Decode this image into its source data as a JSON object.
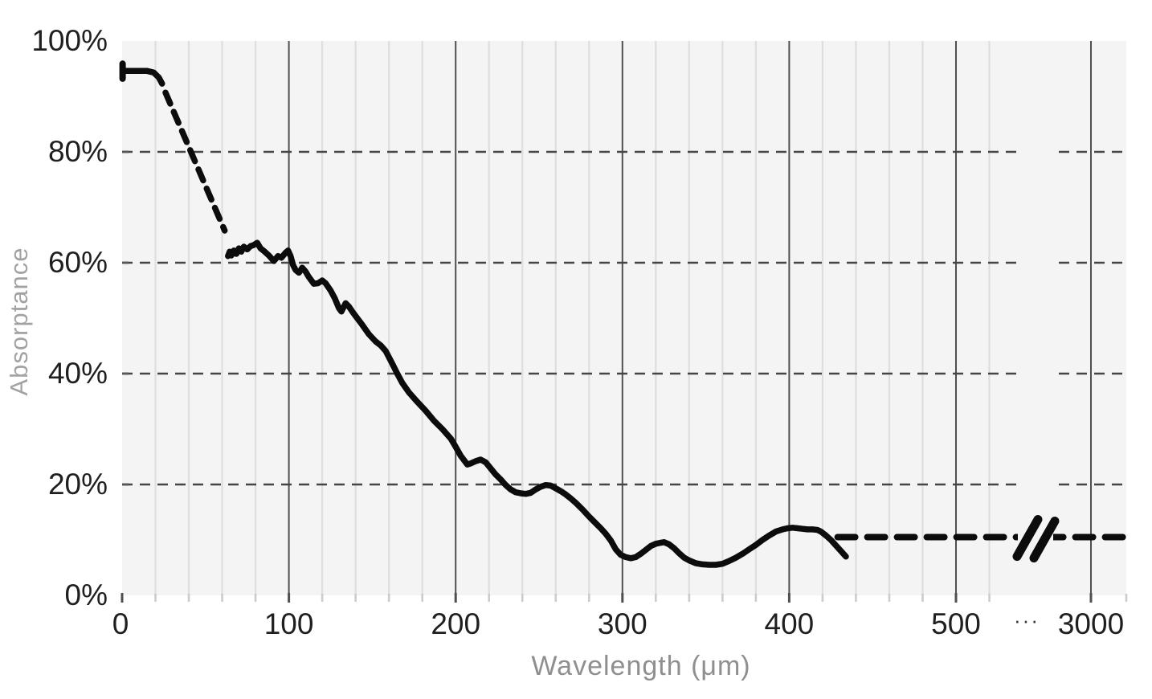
{
  "page": {
    "background": "#ffffff"
  },
  "chart_data": {
    "type": "line",
    "title": "",
    "xlabel": "Wavelength (μm)",
    "ylabel": "Absorptance",
    "x_axis": {
      "unit": "μm",
      "major_ticks": [
        0,
        100,
        200,
        300,
        400,
        500
      ],
      "after_break_tick": 3000,
      "break_label": "···",
      "minor_step_um": 20,
      "minor_last_um": 520,
      "has_axis_break": true,
      "break_symbol": "//"
    },
    "y_axis": {
      "unit": "%",
      "ticks_pct": [
        0,
        20,
        40,
        60,
        80,
        100
      ],
      "tick_labels": [
        "0%",
        "20%",
        "40%",
        "60%",
        "80%",
        "100%"
      ],
      "range_pct": [
        0,
        100
      ],
      "dashed_gridline_pcts": [
        20,
        40,
        60,
        80
      ]
    },
    "grid": {
      "vertical_minor": true,
      "vertical_major": true,
      "horizontal_dashed": true
    },
    "legend": {
      "shown": false
    },
    "colors": {
      "plot_background": "#f4f4f4",
      "grid_minor": "#dedede",
      "grid_major": "#4f4f4f",
      "grid_dashed": "#454545",
      "line": "#0c0c0c",
      "tick_label": "#1f1f1f",
      "axis_title": "#8f8f8f",
      "tick_minor": "#cccccc",
      "tick_major": "#4f4f4f",
      "y_tick": "#5a5a5a"
    },
    "series": [
      {
        "name": "start-cap",
        "style": "solid",
        "width": 8,
        "points": [
          [
            0.3,
            95.9
          ],
          [
            0.3,
            93.2
          ]
        ]
      },
      {
        "name": "measured-initial-solid",
        "style": "solid",
        "width": 7.5,
        "points": [
          [
            0.3,
            94.6
          ],
          [
            15,
            94.6
          ],
          [
            19,
            94.3
          ],
          [
            22,
            93.4
          ],
          [
            24,
            92.3
          ]
        ]
      },
      {
        "name": "interpolated-decline-dashed",
        "style": "dashed",
        "width": 7.5,
        "dash": [
          15,
          11
        ],
        "points": [
          [
            26,
            90.7
          ],
          [
            61.5,
            65.8
          ]
        ]
      },
      {
        "name": "measured-main-solid",
        "style": "solid",
        "width": 7.5,
        "points": [
          [
            63.5,
            61.2
          ],
          [
            64.5,
            62
          ],
          [
            65.5,
            61.3
          ],
          [
            67,
            62.2
          ],
          [
            68.5,
            61.6
          ],
          [
            70,
            62.6
          ],
          [
            71.5,
            62
          ],
          [
            73,
            62.9
          ],
          [
            75,
            62.4
          ],
          [
            77,
            63
          ],
          [
            79,
            63.2
          ],
          [
            81,
            63.6
          ],
          [
            83,
            62.6
          ],
          [
            85.5,
            62
          ],
          [
            88,
            61.3
          ],
          [
            91,
            60.3
          ],
          [
            93.5,
            61.2
          ],
          [
            95.5,
            60.9
          ],
          [
            98,
            61.8
          ],
          [
            99.5,
            62.2
          ],
          [
            101,
            61.2
          ],
          [
            102.5,
            59.6
          ],
          [
            104,
            58.7
          ],
          [
            106,
            58.2
          ],
          [
            108,
            59.1
          ],
          [
            110,
            58.4
          ],
          [
            112,
            57.4
          ],
          [
            115,
            56.2
          ],
          [
            117.5,
            56.3
          ],
          [
            120,
            56.8
          ],
          [
            122,
            56.3
          ],
          [
            125,
            55
          ],
          [
            127.5,
            53.6
          ],
          [
            130,
            51.8
          ],
          [
            131.5,
            51.2
          ],
          [
            134,
            52.7
          ],
          [
            136,
            52.1
          ],
          [
            138,
            51.2
          ],
          [
            140,
            50.4
          ],
          [
            144,
            48.8
          ],
          [
            148,
            47.1
          ],
          [
            152,
            45.8
          ],
          [
            155,
            45.1
          ],
          [
            158,
            44.1
          ],
          [
            162,
            41.8
          ],
          [
            165,
            40
          ],
          [
            168,
            38.3
          ],
          [
            172,
            36.6
          ],
          [
            177,
            34.9
          ],
          [
            182,
            33.3
          ],
          [
            187,
            31.5
          ],
          [
            192,
            30
          ],
          [
            197,
            28.3
          ],
          [
            200,
            26.8
          ],
          [
            203,
            25.2
          ],
          [
            205.5,
            24.2
          ],
          [
            207,
            23.6
          ],
          [
            209,
            23.8
          ],
          [
            212,
            24.2
          ],
          [
            215,
            24.5
          ],
          [
            218,
            24
          ],
          [
            221,
            22.9
          ],
          [
            224,
            21.8
          ],
          [
            227,
            20.9
          ],
          [
            230,
            19.9
          ],
          [
            233,
            19.1
          ],
          [
            236,
            18.6
          ],
          [
            239,
            18.4
          ],
          [
            242,
            18.3
          ],
          [
            245,
            18.5
          ],
          [
            248,
            19.1
          ],
          [
            251,
            19.6
          ],
          [
            254,
            19.9
          ],
          [
            257,
            19.8
          ],
          [
            260,
            19.3
          ],
          [
            263,
            18.8
          ],
          [
            266,
            18.2
          ],
          [
            269,
            17.5
          ],
          [
            272,
            16.7
          ],
          [
            276,
            15.5
          ],
          [
            280,
            14.2
          ],
          [
            284,
            13
          ],
          [
            287,
            12.1
          ],
          [
            290,
            11.1
          ],
          [
            293,
            9.9
          ],
          [
            296,
            8.3
          ],
          [
            299,
            7.3
          ],
          [
            302,
            6.9
          ],
          [
            305,
            6.7
          ],
          [
            308,
            6.9
          ],
          [
            311,
            7.5
          ],
          [
            314,
            8.2
          ],
          [
            317,
            8.9
          ],
          [
            320,
            9.3
          ],
          [
            323,
            9.5
          ],
          [
            325,
            9.6
          ],
          [
            328,
            9.2
          ],
          [
            331,
            8.5
          ],
          [
            334,
            7.6
          ],
          [
            337,
            6.8
          ],
          [
            340,
            6.3
          ],
          [
            344,
            5.8
          ],
          [
            348,
            5.6
          ],
          [
            352,
            5.5
          ],
          [
            356,
            5.5
          ],
          [
            360,
            5.7
          ],
          [
            364,
            6.2
          ],
          [
            368,
            6.8
          ],
          [
            372,
            7.5
          ],
          [
            376,
            8.3
          ],
          [
            380,
            9.1
          ],
          [
            384,
            10
          ],
          [
            388,
            10.8
          ],
          [
            392,
            11.5
          ],
          [
            396,
            11.9
          ],
          [
            399,
            12.1
          ],
          [
            402,
            12.2
          ],
          [
            405,
            12.1
          ],
          [
            408,
            12
          ],
          [
            411,
            11.9
          ],
          [
            414,
            11.9
          ],
          [
            417,
            11.8
          ],
          [
            419,
            11.5
          ],
          [
            422,
            10.8
          ],
          [
            425,
            10
          ],
          [
            428,
            9
          ],
          [
            431,
            8
          ],
          [
            434,
            7
          ]
        ]
      },
      {
        "name": "extrapolated-flat-dashed",
        "style": "dashed",
        "width": 8,
        "dash": [
          22,
          15
        ],
        "value_pct": 10.5,
        "from_um": 429,
        "to": "plot-right-edge",
        "crosses_axis_break": true
      }
    ]
  }
}
